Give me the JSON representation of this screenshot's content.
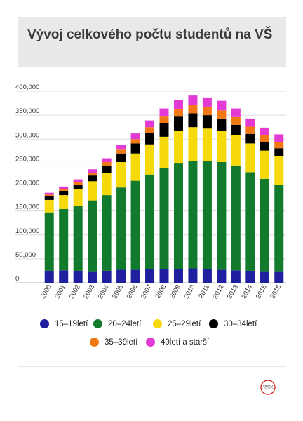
{
  "title": "Vývoj celkového počtu studentů na VŠ",
  "logo_text": "ČESKO V DATECH",
  "chart_data": {
    "type": "bar",
    "stacked": true,
    "categories": [
      "2000",
      "2001",
      "2002",
      "2003",
      "2004",
      "2005",
      "2006",
      "2007",
      "2008",
      "2009",
      "2010",
      "2011",
      "2012",
      "2013",
      "2014",
      "2015",
      "2016"
    ],
    "y_ticks": [
      "0",
      "50,000",
      "100,000",
      "150,000",
      "200,000",
      "250,000",
      "300,000",
      "350,000",
      "400,000"
    ],
    "ylim": [
      0,
      400000
    ],
    "grid": true,
    "legend_position": "bottom",
    "series": [
      {
        "name": "15–19letí",
        "color": "#1f1fa0",
        "values": [
          25000,
          26000,
          25000,
          24000,
          25000,
          27000,
          27000,
          28000,
          28000,
          29000,
          30000,
          28000,
          27000,
          26000,
          25000,
          24000,
          24000
        ]
      },
      {
        "name": "20–24letí",
        "color": "#117a2d",
        "values": [
          122000,
          128000,
          136000,
          148000,
          158000,
          172000,
          186000,
          198000,
          211000,
          220000,
          225000,
          226000,
          225000,
          219000,
          206000,
          193000,
          181000
        ]
      },
      {
        "name": "25–29letí",
        "color": "#f5d90a",
        "values": [
          26000,
          29000,
          34000,
          40000,
          47000,
          53000,
          57000,
          63000,
          66000,
          69000,
          70000,
          68000,
          66000,
          63000,
          60000,
          59000,
          59000
        ]
      },
      {
        "name": "30–34letí",
        "color": "#000000",
        "values": [
          8000,
          9000,
          10000,
          12000,
          15000,
          18000,
          21000,
          24000,
          28000,
          29000,
          29000,
          28000,
          25000,
          22000,
          20000,
          18000,
          17000
        ]
      },
      {
        "name": "35–39letí",
        "color": "#f27813",
        "values": [
          3000,
          4000,
          5000,
          6000,
          7000,
          8000,
          9000,
          12000,
          14000,
          16000,
          17000,
          17000,
          17000,
          16000,
          15000,
          14000,
          13000
        ]
      },
      {
        "name": "40letí a starší",
        "color": "#e33ad6",
        "values": [
          4000,
          5000,
          6000,
          7000,
          8000,
          10000,
          12000,
          14000,
          17000,
          19000,
          20000,
          20000,
          20000,
          18000,
          17000,
          16000,
          16000
        ]
      }
    ]
  }
}
